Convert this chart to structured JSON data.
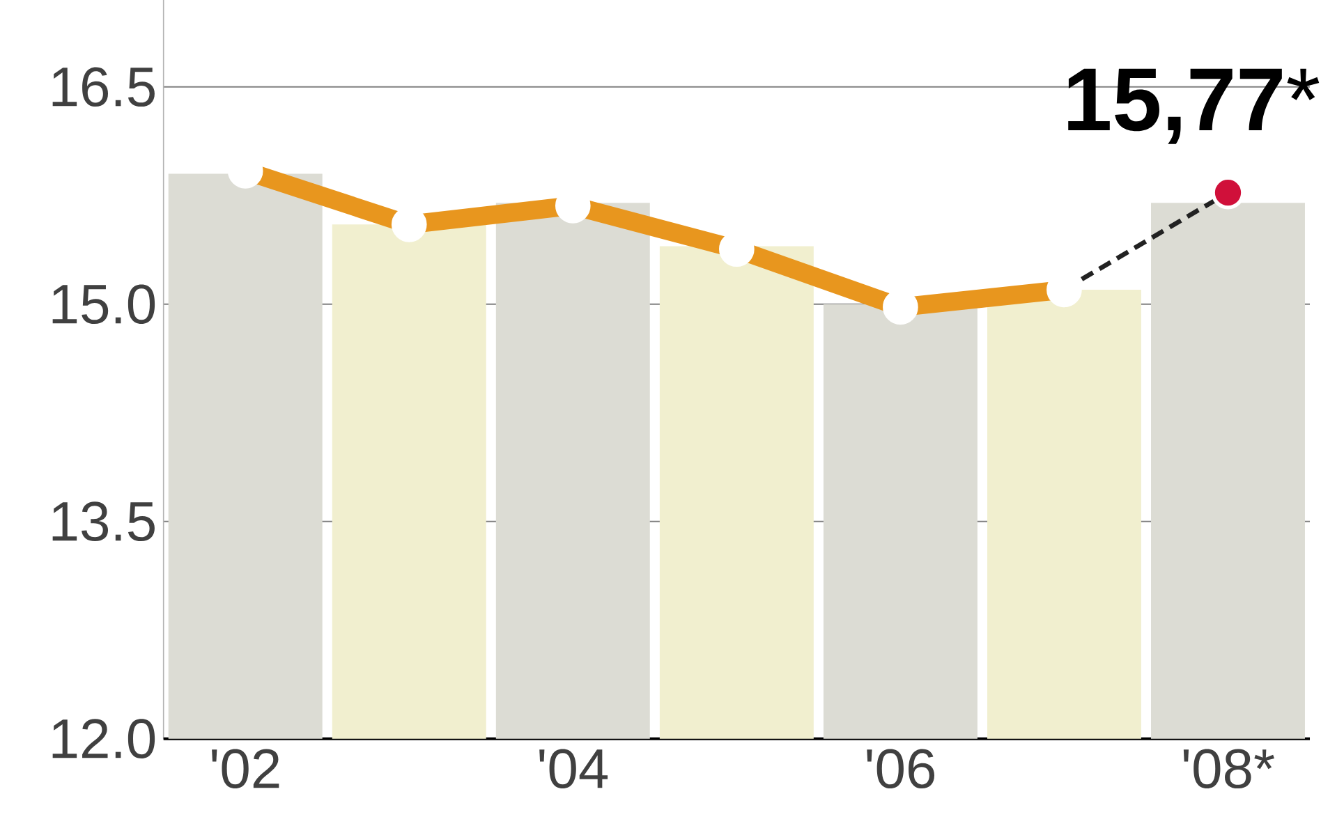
{
  "chart_data": {
    "type": "line",
    "categories": [
      "'02",
      null,
      "'04",
      null,
      "'06",
      null,
      "'08*"
    ],
    "series": [
      {
        "type": "bar",
        "colors": [
          "#dcdcd4",
          "#f1efcf",
          "#dcdcd4",
          "#f1efcf",
          "#dcdcd4",
          "#f1efcf",
          "#dcdcd4"
        ],
        "values": [
          15.9,
          15.55,
          15.7,
          15.4,
          15.0,
          15.1,
          15.7
        ]
      },
      {
        "color": "#e8961e",
        "marker": "circle",
        "line_style": "solid",
        "values": [
          15.92,
          15.55,
          15.68,
          15.38,
          14.98,
          15.1,
          null
        ]
      },
      {
        "type": "line",
        "color": "#222222",
        "line_style": "dashed",
        "values": [
          null,
          null,
          null,
          null,
          null,
          15.1,
          15.77
        ]
      },
      {
        "type": "scatter",
        "color": "#d0103a",
        "marker": "circle",
        "values": [
          null,
          null,
          null,
          null,
          null,
          null,
          15.77
        ]
      }
    ],
    "ylim": [
      12,
      17.1
    ],
    "yticks": [
      {
        "value": 12,
        "label": "12.0"
      },
      {
        "value": 13.5,
        "label": "13.5"
      },
      {
        "value": 15,
        "label": "15.0"
      },
      {
        "value": 16.5,
        "label": "16.5"
      }
    ],
    "grid": "y",
    "annotations": [
      {
        "text": "**15,77***",
        "x": "'08*",
        "y": 15.77
      }
    ]
  }
}
